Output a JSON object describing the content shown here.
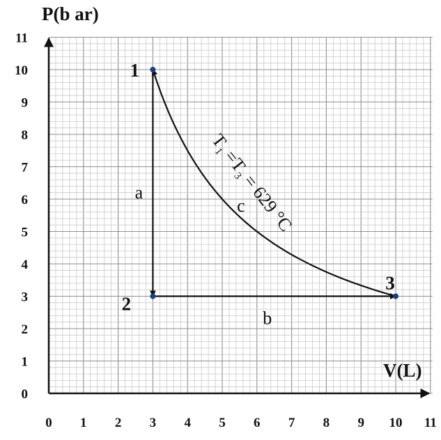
{
  "chart_data": {
    "type": "line",
    "xlabel": "V(L)",
    "ylabel": "P(b ar)",
    "xlim": [
      0,
      11
    ],
    "ylim": [
      0,
      11
    ],
    "x_ticks": [
      "0",
      "1",
      "2",
      "3",
      "4",
      "5",
      "6",
      "7",
      "8",
      "9",
      "10",
      "11"
    ],
    "y_ticks": [
      "0",
      "1",
      "2",
      "3",
      "4",
      "5",
      "6",
      "7",
      "8",
      "9",
      "10",
      "11"
    ],
    "grid": true,
    "points": [
      {
        "label": "1",
        "x": 3,
        "y": 10
      },
      {
        "label": "2",
        "x": 3,
        "y": 3
      },
      {
        "label": "3",
        "x": 10,
        "y": 3
      }
    ],
    "paths": [
      {
        "label": "a",
        "from": "1",
        "to": "2",
        "kind": "straight"
      },
      {
        "label": "b",
        "from": "2",
        "to": "3",
        "kind": "straight"
      },
      {
        "label": "c",
        "from": "3",
        "to": "1",
        "kind": "isotherm"
      }
    ],
    "annotation": {
      "t1": "T",
      "sub1": "1",
      "eq1": " =T",
      "sub3": "3",
      "rest": " = 629 °C"
    },
    "colors": {
      "line": "#111111",
      "point": "#1f3f7a"
    }
  }
}
